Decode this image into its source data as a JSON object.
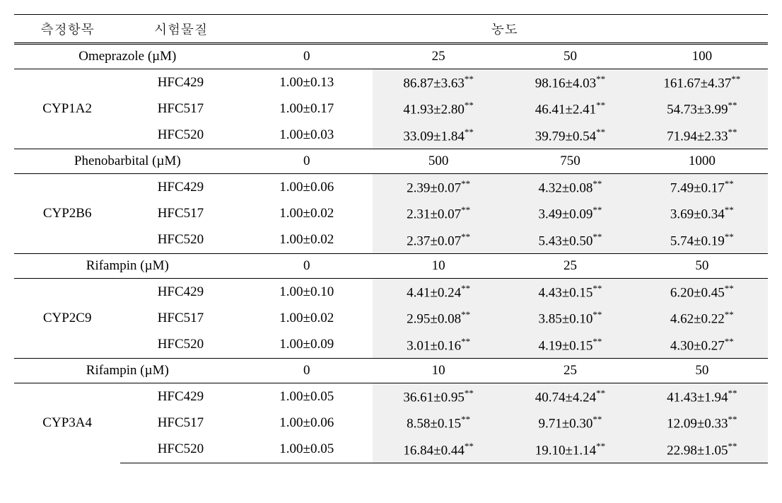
{
  "header": {
    "col1": "측정항목",
    "col2": "시험물질",
    "col3": "농도"
  },
  "sections": [
    {
      "drug": "Omeprazole (µM)",
      "doses": [
        "0",
        "25",
        "50",
        "100"
      ],
      "cyp": "CYP1A2",
      "rows": [
        {
          "sample": "HFC429",
          "vals": [
            "1.00±0.13",
            "86.87±3.63",
            "98.16±4.03",
            "161.67±4.37"
          ],
          "sig": [
            "",
            "**",
            "**",
            "**"
          ],
          "shade": [
            false,
            true,
            true,
            true
          ]
        },
        {
          "sample": "HFC517",
          "vals": [
            "1.00±0.17",
            "41.93±2.80",
            "46.41±2.41",
            "54.73±3.99"
          ],
          "sig": [
            "",
            "**",
            "**",
            "**"
          ],
          "shade": [
            false,
            true,
            true,
            true
          ]
        },
        {
          "sample": "HFC520",
          "vals": [
            "1.00±0.03",
            "33.09±1.84",
            "39.79±0.54",
            "71.94±2.33"
          ],
          "sig": [
            "",
            "**",
            "**",
            "**"
          ],
          "shade": [
            false,
            true,
            true,
            true
          ]
        }
      ]
    },
    {
      "drug": "Phenobarbital (µM)",
      "doses": [
        "0",
        "500",
        "750",
        "1000"
      ],
      "cyp": "CYP2B6",
      "rows": [
        {
          "sample": "HFC429",
          "vals": [
            "1.00±0.06",
            "2.39±0.07",
            "4.32±0.08",
            "7.49±0.17"
          ],
          "sig": [
            "",
            "**",
            "**",
            "**"
          ],
          "shade": [
            false,
            true,
            true,
            true
          ]
        },
        {
          "sample": "HFC517",
          "vals": [
            "1.00±0.02",
            "2.31±0.07",
            "3.49±0.09",
            "3.69±0.34"
          ],
          "sig": [
            "",
            "**",
            "**",
            "**"
          ],
          "shade": [
            false,
            true,
            true,
            true
          ]
        },
        {
          "sample": "HFC520",
          "vals": [
            "1.00±0.02",
            "2.37±0.07",
            "5.43±0.50",
            "5.74±0.19"
          ],
          "sig": [
            "",
            "**",
            "**",
            "**"
          ],
          "shade": [
            false,
            true,
            true,
            true
          ]
        }
      ]
    },
    {
      "drug": "Rifampin (µM)",
      "doses": [
        "0",
        "10",
        "25",
        "50"
      ],
      "cyp": "CYP2C9",
      "rows": [
        {
          "sample": "HFC429",
          "vals": [
            "1.00±0.10",
            "4.41±0.24",
            "4.43±0.15",
            "6.20±0.45"
          ],
          "sig": [
            "",
            "**",
            "**",
            "**"
          ],
          "shade": [
            false,
            true,
            true,
            true
          ]
        },
        {
          "sample": "HFC517",
          "vals": [
            "1.00±0.02",
            "2.95±0.08",
            "3.85±0.10",
            "4.62±0.22"
          ],
          "sig": [
            "",
            "**",
            "**",
            "**"
          ],
          "shade": [
            false,
            true,
            true,
            true
          ]
        },
        {
          "sample": "HFC520",
          "vals": [
            "1.00±0.09",
            "3.01±0.16",
            "4.19±0.15",
            "4.30±0.27"
          ],
          "sig": [
            "",
            "**",
            "**",
            "**"
          ],
          "shade": [
            false,
            true,
            true,
            true
          ]
        }
      ]
    },
    {
      "drug": "Rifampin (µM)",
      "doses": [
        "0",
        "10",
        "25",
        "50"
      ],
      "cyp": "CYP3A4",
      "rows": [
        {
          "sample": "HFC429",
          "vals": [
            "1.00±0.05",
            "36.61±0.95",
            "40.74±4.24",
            "41.43±1.94"
          ],
          "sig": [
            "",
            "**",
            "**",
            "**"
          ],
          "shade": [
            false,
            true,
            true,
            true
          ]
        },
        {
          "sample": "HFC517",
          "vals": [
            "1.00±0.06",
            "8.58±0.15",
            "9.71±0.30",
            "12.09±0.33"
          ],
          "sig": [
            "",
            "**",
            "**",
            "**"
          ],
          "shade": [
            false,
            true,
            true,
            true
          ]
        },
        {
          "sample": "HFC520",
          "vals": [
            "1.00±0.05",
            "16.84±0.44",
            "19.10±1.14",
            "22.98±1.05"
          ],
          "sig": [
            "",
            "**",
            "**",
            "**"
          ],
          "shade": [
            false,
            true,
            true,
            true
          ]
        }
      ]
    }
  ]
}
